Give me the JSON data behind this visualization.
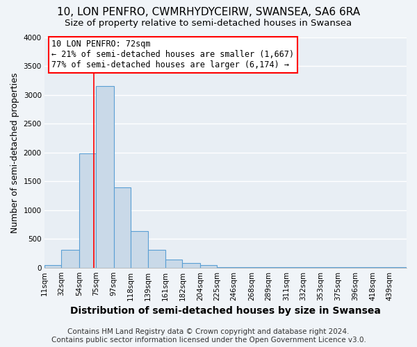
{
  "title": "10, LON PENFRO, CWMRHYDYCEIRW, SWANSEA, SA6 6RA",
  "subtitle": "Size of property relative to semi-detached houses in Swansea",
  "xlabel": "Distribution of semi-detached houses by size in Swansea",
  "ylabel": "Number of semi-detached properties",
  "bar_labels": [
    "11sqm",
    "32sqm",
    "54sqm",
    "75sqm",
    "97sqm",
    "118sqm",
    "139sqm",
    "161sqm",
    "182sqm",
    "204sqm",
    "225sqm",
    "246sqm",
    "268sqm",
    "289sqm",
    "311sqm",
    "332sqm",
    "353sqm",
    "375sqm",
    "396sqm",
    "418sqm",
    "439sqm"
  ],
  "bar_values": [
    50,
    315,
    1985,
    3155,
    1400,
    640,
    315,
    135,
    75,
    40,
    8,
    8,
    5,
    5,
    5,
    3,
    3,
    3,
    3,
    3,
    3
  ],
  "bar_edges": [
    11,
    32,
    54,
    75,
    97,
    118,
    139,
    161,
    182,
    204,
    225,
    246,
    268,
    289,
    311,
    332,
    353,
    375,
    396,
    418,
    439,
    460
  ],
  "bar_color": "#c9d9e8",
  "bar_edgecolor": "#5a9fd4",
  "property_size": 72,
  "vline_color": "red",
  "ylim": [
    0,
    4000
  ],
  "yticks": [
    0,
    500,
    1000,
    1500,
    2000,
    2500,
    3000,
    3500,
    4000
  ],
  "annotation_title": "10 LON PENFRO: 72sqm",
  "annotation_line1": "← 21% of semi-detached houses are smaller (1,667)",
  "annotation_line2": "77% of semi-detached houses are larger (6,174) →",
  "annotation_box_color": "white",
  "annotation_box_edgecolor": "red",
  "footer1": "Contains HM Land Registry data © Crown copyright and database right 2024.",
  "footer2": "Contains public sector information licensed under the Open Government Licence v3.0.",
  "background_color": "#f0f4f8",
  "plot_bg_color": "#e8eef4",
  "grid_color": "white",
  "title_fontsize": 11,
  "subtitle_fontsize": 9.5,
  "xlabel_fontsize": 10,
  "ylabel_fontsize": 9,
  "annotation_fontsize": 8.5,
  "tick_fontsize": 7.5,
  "footer_fontsize": 7.5
}
